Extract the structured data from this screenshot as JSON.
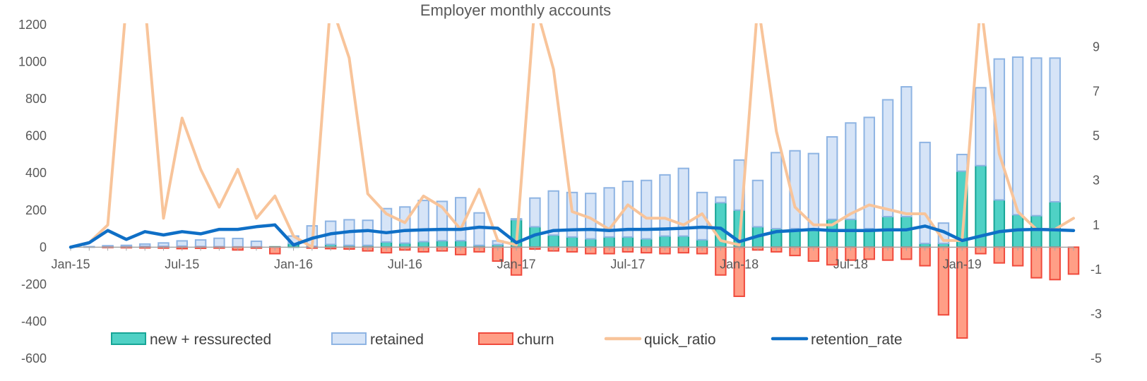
{
  "chart_data": {
    "type": "bar",
    "title": "Employer monthly accounts",
    "xlabel": "",
    "ylabel": "",
    "ylim": [
      -600,
      1200
    ],
    "y2lim": [
      -5,
      10
    ],
    "y_ticks": [
      "1200",
      "1000",
      "800",
      "600",
      "400",
      "200",
      "0",
      "-200",
      "-400",
      "-600"
    ],
    "y_tick_values": [
      1200,
      1000,
      800,
      600,
      400,
      200,
      0,
      -200,
      -400,
      -600
    ],
    "y2_ticks": [
      "9",
      "7",
      "5",
      "3",
      "1",
      "-1",
      "-3",
      "-5"
    ],
    "y2_tick_values": [
      9,
      7,
      5,
      3,
      1,
      -1,
      -3,
      -5
    ],
    "x_tick_labels": [
      "Jan-15",
      "Jul-15",
      "Jan-16",
      "Jul-16",
      "Jan-17",
      "Jul-17",
      "Jan-18",
      "Jul-18",
      "Jan-19"
    ],
    "x_tick_index": [
      0,
      6,
      12,
      18,
      24,
      30,
      36,
      42,
      48
    ],
    "grid": false,
    "legend_position": "bottom",
    "categories": [
      "Jan-15",
      "Feb-15",
      "Mar-15",
      "Apr-15",
      "May-15",
      "Jun-15",
      "Jul-15",
      "Aug-15",
      "Sep-15",
      "Oct-15",
      "Nov-15",
      "Dec-15",
      "Jan-16",
      "Feb-16",
      "Mar-16",
      "Apr-16",
      "May-16",
      "Jun-16",
      "Jul-16",
      "Aug-16",
      "Sep-16",
      "Oct-16",
      "Nov-16",
      "Dec-16",
      "Jan-17",
      "Feb-17",
      "Mar-17",
      "Apr-17",
      "May-17",
      "Jun-17",
      "Jul-17",
      "Aug-17",
      "Sep-17",
      "Oct-17",
      "Nov-17",
      "Dec-17",
      "Jan-18",
      "Feb-18",
      "Mar-18",
      "Apr-18",
      "May-18",
      "Jun-18",
      "Jul-18",
      "Aug-18",
      "Sep-18",
      "Oct-18",
      "Nov-18",
      "Dec-18",
      "Jan-19",
      "Feb-19",
      "Mar-19",
      "Apr-19",
      "May-19",
      "Jun-19",
      "Jul-19"
    ],
    "series": [
      {
        "name": "new + ressurected",
        "kind": "bar",
        "color": "#4FD1C5",
        "stroke": "#17A596",
        "values": [
          0,
          0,
          3,
          4,
          5,
          5,
          6,
          4,
          3,
          2,
          2,
          2,
          20,
          5,
          15,
          10,
          10,
          28,
          22,
          30,
          35,
          35,
          10,
          14,
          148,
          110,
          65,
          55,
          45,
          55,
          55,
          45,
          60,
          60,
          40,
          240,
          200,
          110,
          100,
          100,
          90,
          150,
          150,
          100,
          165,
          165,
          20,
          20,
          410,
          440,
          255,
          175,
          170,
          245,
          0
        ]
      },
      {
        "name": "retained",
        "kind": "bar",
        "color": "#D6E4F7",
        "stroke": "#8EB4E3",
        "values": [
          0,
          3,
          5,
          6,
          12,
          18,
          28,
          35,
          45,
          45,
          30,
          0,
          40,
          110,
          125,
          138,
          135,
          180,
          195,
          222,
          212,
          232,
          175,
          20,
          5,
          155,
          238,
          240,
          245,
          265,
          300,
          315,
          330,
          365,
          255,
          30,
          270,
          250,
          410,
          420,
          415,
          445,
          520,
          600,
          630,
          700,
          545,
          110,
          90,
          420,
          760,
          850,
          850,
          775,
          0
        ]
      },
      {
        "name": "churn",
        "kind": "bar",
        "color": "#FF9E86",
        "stroke": "#F04A3C",
        "values": [
          0,
          0,
          -2,
          -3,
          -4,
          -5,
          -8,
          -6,
          -5,
          -15,
          -5,
          -35,
          0,
          -5,
          -8,
          -10,
          -20,
          -30,
          -15,
          -25,
          -20,
          -40,
          -25,
          -75,
          -150,
          -10,
          -20,
          -25,
          -35,
          -35,
          -25,
          -30,
          -35,
          -30,
          -35,
          -150,
          -265,
          -15,
          -25,
          -45,
          -75,
          -95,
          -70,
          -65,
          -70,
          -65,
          -100,
          -365,
          -490,
          -35,
          -85,
          -100,
          -165,
          -175,
          -145
        ]
      },
      {
        "name": "quick_ratio",
        "kind": "line",
        "axis": "secondary",
        "color": "#F8C49A",
        "values": [
          0,
          0.2,
          1,
          11,
          11,
          1.3,
          5.8,
          3.5,
          1.8,
          3.5,
          1.3,
          2.3,
          0.5,
          0,
          11,
          8.5,
          2.4,
          1.5,
          1.1,
          2.3,
          1.8,
          0.8,
          2.6,
          0.3,
          0.1,
          11,
          8,
          1.6,
          1.3,
          0.8,
          1.9,
          1.3,
          1.3,
          1,
          1.5,
          0.3,
          0.1,
          11,
          5.2,
          1.8,
          1,
          1,
          1.5,
          1.9,
          1.7,
          1.5,
          1.5,
          0.3,
          0.3,
          11,
          4.2,
          1.6,
          0.8,
          0.8,
          1.3
        ]
      },
      {
        "name": "retention_rate",
        "kind": "line",
        "axis": "secondary",
        "color": "#0F6FC6",
        "values": [
          0,
          0.2,
          0.75,
          0.35,
          0.7,
          0.55,
          0.7,
          0.6,
          0.8,
          0.8,
          0.92,
          1,
          0.1,
          0.4,
          0.6,
          0.7,
          0.75,
          0.65,
          0.75,
          0.78,
          0.8,
          0.8,
          0.9,
          0.85,
          0.2,
          0.55,
          0.75,
          0.78,
          0.8,
          0.75,
          0.8,
          0.8,
          0.82,
          0.85,
          0.9,
          0.85,
          0.25,
          0.5,
          0.7,
          0.75,
          0.8,
          0.75,
          0.75,
          0.75,
          0.78,
          0.78,
          0.95,
          0.7,
          0.3,
          0.5,
          0.7,
          0.78,
          0.8,
          0.78,
          0.75
        ]
      }
    ]
  }
}
